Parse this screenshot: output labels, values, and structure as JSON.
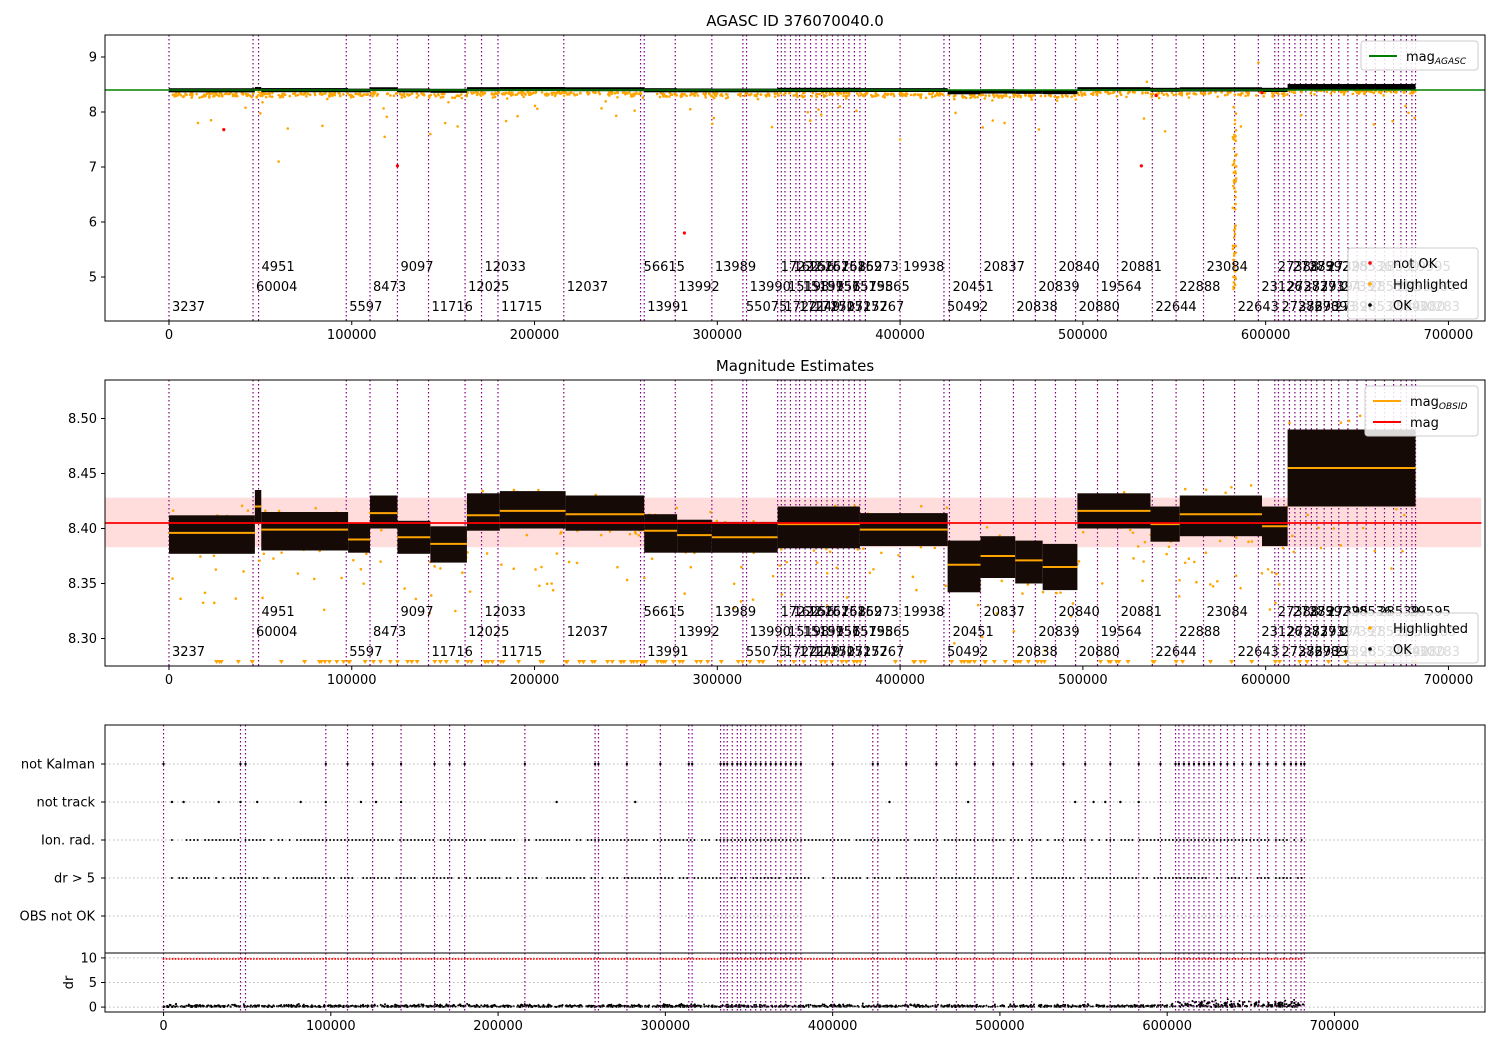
{
  "chart_data": [
    {
      "type": "scatter",
      "title": "AGASC ID 376070040.0",
      "xlim": [
        -35000,
        720000
      ],
      "ylim": [
        4.2,
        9.4
      ],
      "x_ticks": [
        0,
        100000,
        200000,
        300000,
        400000,
        500000,
        600000,
        700000
      ],
      "x_tick_labels": [
        "0",
        "100000",
        "200000",
        "300000",
        "400000",
        "500000",
        "600000",
        "700000"
      ],
      "y_ticks": [
        5,
        6,
        7,
        8,
        9
      ],
      "y_tick_labels": [
        "5",
        "6",
        "7",
        "8",
        "9"
      ],
      "reference_line": {
        "name": "mag_AGASC",
        "y": 8.4,
        "color": "#008000"
      },
      "legend_top": {
        "position": "top-right",
        "entries": [
          {
            "label": "mag",
            "subscript": "AGASC",
            "color": "#008000",
            "marker": "line"
          }
        ]
      },
      "legend_bottom": {
        "position": "lower-right",
        "entries": [
          {
            "label": "not OK",
            "color": "#ff0000",
            "marker": "dot"
          },
          {
            "label": "Highlighted",
            "color": "#ffa500",
            "marker": "dot"
          },
          {
            "label": "OK",
            "color": "#000000",
            "marker": "dot"
          }
        ]
      },
      "not_ok_points": [
        [
          30000,
          7.68
        ],
        [
          125000,
          7.02
        ],
        [
          282000,
          5.8
        ],
        [
          532000,
          7.02
        ],
        [
          540000,
          8.3
        ],
        [
          598000,
          8.35
        ]
      ],
      "grid": false
    },
    {
      "type": "scatter",
      "title": "Magnitude Estimates",
      "xlim": [
        -35000,
        720000
      ],
      "ylim": [
        8.275,
        8.535
      ],
      "x_ticks": [
        0,
        100000,
        200000,
        300000,
        400000,
        500000,
        600000,
        700000
      ],
      "x_tick_labels": [
        "0",
        "100000",
        "200000",
        "300000",
        "400000",
        "500000",
        "600000",
        "700000"
      ],
      "y_ticks": [
        8.3,
        8.35,
        8.4,
        8.45,
        8.5
      ],
      "y_tick_labels": [
        "8.30",
        "8.35",
        "8.40",
        "8.45",
        "8.50"
      ],
      "mean_mag": {
        "name": "mag",
        "y": 8.405,
        "band": [
          8.383,
          8.428
        ],
        "color": "#ff0000"
      },
      "legend_top": {
        "position": "top-right",
        "entries": [
          {
            "label": "mag",
            "subscript": "OBSID",
            "color": "#ffa500",
            "marker": "line"
          },
          {
            "label": "mag",
            "subscript": "",
            "color": "#ff0000",
            "marker": "line"
          }
        ]
      },
      "legend_bottom": {
        "position": "lower-right",
        "entries": [
          {
            "label": "Highlighted",
            "color": "#ffa500",
            "marker": "dot"
          },
          {
            "label": "OK",
            "color": "#000000",
            "marker": "dot"
          }
        ]
      },
      "obsid_segments": [
        {
          "x0": 0,
          "x1": 47000,
          "mag": 8.396,
          "lo": 8.377,
          "hi": 8.412
        },
        {
          "x0": 47000,
          "x1": 50500,
          "mag": 8.42,
          "lo": 8.405,
          "hi": 8.435
        },
        {
          "x0": 50500,
          "x1": 98000,
          "mag": 8.399,
          "lo": 8.38,
          "hi": 8.415
        },
        {
          "x0": 98000,
          "x1": 110000,
          "mag": 8.39,
          "lo": 8.378,
          "hi": 8.405
        },
        {
          "x0": 110000,
          "x1": 125000,
          "mag": 8.414,
          "lo": 8.4,
          "hi": 8.43
        },
        {
          "x0": 125000,
          "x1": 143000,
          "mag": 8.392,
          "lo": 8.377,
          "hi": 8.407
        },
        {
          "x0": 143000,
          "x1": 163000,
          "mag": 8.386,
          "lo": 8.369,
          "hi": 8.402
        },
        {
          "x0": 163000,
          "x1": 181000,
          "mag": 8.412,
          "lo": 8.398,
          "hi": 8.432
        },
        {
          "x0": 181000,
          "x1": 217000,
          "mag": 8.416,
          "lo": 8.4,
          "hi": 8.434
        },
        {
          "x0": 217000,
          "x1": 260000,
          "mag": 8.413,
          "lo": 8.398,
          "hi": 8.43
        },
        {
          "x0": 260000,
          "x1": 278000,
          "mag": 8.398,
          "lo": 8.378,
          "hi": 8.413
        },
        {
          "x0": 278000,
          "x1": 297000,
          "mag": 8.394,
          "lo": 8.378,
          "hi": 8.408
        },
        {
          "x0": 297000,
          "x1": 333000,
          "mag": 8.392,
          "lo": 8.378,
          "hi": 8.406
        },
        {
          "x0": 333000,
          "x1": 378000,
          "mag": 8.404,
          "lo": 8.382,
          "hi": 8.42
        },
        {
          "x0": 378000,
          "x1": 426000,
          "mag": 8.399,
          "lo": 8.384,
          "hi": 8.414
        },
        {
          "x0": 426000,
          "x1": 444000,
          "mag": 8.367,
          "lo": 8.342,
          "hi": 8.389
        },
        {
          "x0": 444000,
          "x1": 463000,
          "mag": 8.375,
          "lo": 8.355,
          "hi": 8.393
        },
        {
          "x0": 463000,
          "x1": 478000,
          "mag": 8.371,
          "lo": 8.35,
          "hi": 8.389
        },
        {
          "x0": 478000,
          "x1": 497000,
          "mag": 8.365,
          "lo": 8.344,
          "hi": 8.386
        },
        {
          "x0": 497000,
          "x1": 537000,
          "mag": 8.416,
          "lo": 8.4,
          "hi": 8.432
        },
        {
          "x0": 537000,
          "x1": 553000,
          "mag": 8.404,
          "lo": 8.388,
          "hi": 8.42
        },
        {
          "x0": 553000,
          "x1": 598000,
          "mag": 8.413,
          "lo": 8.393,
          "hi": 8.43
        },
        {
          "x0": 598000,
          "x1": 612000,
          "mag": 8.402,
          "lo": 8.384,
          "hi": 8.42
        },
        {
          "x0": 612000,
          "x1": 682000,
          "mag": 8.455,
          "lo": 8.42,
          "hi": 8.49
        }
      ],
      "grid": false
    },
    {
      "type": "scatter",
      "title": "",
      "xlim": [
        -35000,
        790000
      ],
      "flag_rows": [
        "not Kalman",
        "not track",
        "Ion. rad.",
        "dr > 5",
        "OBS not OK"
      ],
      "dr_panel": {
        "ylabel": "dr",
        "y_ticks": [
          0,
          5,
          10
        ],
        "y_tick_labels": [
          "0",
          "5",
          "10"
        ],
        "ylim": [
          -1,
          11
        ]
      },
      "x_ticks": [
        0,
        100000,
        200000,
        300000,
        400000,
        500000,
        600000,
        700000
      ],
      "x_tick_labels": [
        "0",
        "100000",
        "200000",
        "300000",
        "400000",
        "500000",
        "600000",
        "700000"
      ],
      "grid": "horizontal dotted"
    }
  ],
  "obsid_markers": [
    {
      "x": 0,
      "label": "3237",
      "row": 3
    },
    {
      "x": 46000,
      "label": "60004",
      "row": 2
    },
    {
      "x": 49000,
      "label": "4951",
      "row": 1
    },
    {
      "x": 97000,
      "label": "5597",
      "row": 3
    },
    {
      "x": 110000,
      "label": "8473",
      "row": 2
    },
    {
      "x": 125000,
      "label": "9097",
      "row": 1
    },
    {
      "x": 142000,
      "label": "11716",
      "row": 3
    },
    {
      "x": 162000,
      "label": "12025",
      "row": 2
    },
    {
      "x": 171000,
      "label": "12033",
      "row": 1
    },
    {
      "x": 180000,
      "label": "11715",
      "row": 3
    },
    {
      "x": 216000,
      "label": "12037",
      "row": 2
    },
    {
      "x": 258000,
      "label": "56615",
      "row": 1
    },
    {
      "x": 260000,
      "label": "13991",
      "row": 3
    },
    {
      "x": 277000,
      "label": "13992",
      "row": 2
    },
    {
      "x": 297000,
      "label": "13989",
      "row": 1
    },
    {
      "x": 314000,
      "label": "55075",
      "row": 3
    },
    {
      "x": 316000,
      "label": "13990",
      "row": 2
    },
    {
      "x": 333000,
      "label": "17222",
      "row": 1
    },
    {
      "x": 335000,
      "label": "17221",
      "row": 3
    },
    {
      "x": 337000,
      "label": "15198",
      "row": 2
    },
    {
      "x": 340000,
      "label": "16256",
      "row": 1
    },
    {
      "x": 343000,
      "label": "17249",
      "row": 3
    },
    {
      "x": 345000,
      "label": "15199",
      "row": 2
    },
    {
      "x": 348000,
      "label": "16257",
      "row": 1
    },
    {
      "x": 351000,
      "label": "17250",
      "row": 3
    },
    {
      "x": 354000,
      "label": "15756",
      "row": 2
    },
    {
      "x": 357000,
      "label": "16258",
      "row": 1
    },
    {
      "x": 360000,
      "label": "17251",
      "row": 3
    },
    {
      "x": 363000,
      "label": "15757",
      "row": 2
    },
    {
      "x": 366000,
      "label": "16259",
      "row": 1
    },
    {
      "x": 369000,
      "label": "17252",
      "row": 3
    },
    {
      "x": 372000,
      "label": "15758",
      "row": 2
    },
    {
      "x": 375000,
      "label": "16273",
      "row": 1
    },
    {
      "x": 378000,
      "label": "17767",
      "row": 3
    },
    {
      "x": 381000,
      "label": "19565",
      "row": 2
    },
    {
      "x": 400000,
      "label": "19938",
      "row": 1
    },
    {
      "x": 424000,
      "label": "50492",
      "row": 3
    },
    {
      "x": 427000,
      "label": "20451",
      "row": 2
    },
    {
      "x": 444000,
      "label": "20837",
      "row": 1
    },
    {
      "x": 462000,
      "label": "20838",
      "row": 3
    },
    {
      "x": 474000,
      "label": "20839",
      "row": 2
    },
    {
      "x": 485000,
      "label": "20840",
      "row": 1
    },
    {
      "x": 496000,
      "label": "20880",
      "row": 3
    },
    {
      "x": 508000,
      "label": "19564",
      "row": 2
    },
    {
      "x": 519000,
      "label": "20881",
      "row": 1
    },
    {
      "x": 538000,
      "label": "22644",
      "row": 3
    },
    {
      "x": 551000,
      "label": "22888",
      "row": 2
    },
    {
      "x": 566000,
      "label": "23084",
      "row": 1
    },
    {
      "x": 583000,
      "label": "22643",
      "row": 3
    },
    {
      "x": 596000,
      "label": "23126",
      "row": 2
    },
    {
      "x": 605000,
      "label": "27388",
      "row": 1
    },
    {
      "x": 607000,
      "label": "27386",
      "row": 3
    },
    {
      "x": 610000,
      "label": "27387",
      "row": 2
    },
    {
      "x": 613000,
      "label": "27389",
      "row": 1
    },
    {
      "x": 616000,
      "label": "27390",
      "row": 3
    },
    {
      "x": 619000,
      "label": "27391",
      "row": 2
    },
    {
      "x": 622000,
      "label": "27392",
      "row": 1
    },
    {
      "x": 625000,
      "label": "27393",
      "row": 3
    },
    {
      "x": 628000,
      "label": "27394",
      "row": 2
    },
    {
      "x": 632000,
      "label": "27395",
      "row": 1
    },
    {
      "x": 636000,
      "label": "27396",
      "row": 3
    },
    {
      "x": 640000,
      "label": "27397",
      "row": 2
    },
    {
      "x": 645000,
      "label": "28536",
      "row": 1
    },
    {
      "x": 650000,
      "label": "28537",
      "row": 3
    },
    {
      "x": 655000,
      "label": "28538",
      "row": 2
    },
    {
      "x": 660000,
      "label": "28539",
      "row": 1
    },
    {
      "x": 665000,
      "label": "28540",
      "row": 3
    },
    {
      "x": 670000,
      "label": "28578",
      "row": 2
    },
    {
      "x": 674000,
      "label": "29280",
      "row": 3
    },
    {
      "x": 677000,
      "label": "29595",
      "row": 1
    },
    {
      "x": 680000,
      "label": "30280",
      "row": 2
    },
    {
      "x": 682000,
      "label": "30283",
      "row": 3
    }
  ],
  "colors": {
    "ok": "#000000",
    "highlighted": "#ffa500",
    "not_ok": "#ff0000",
    "obsid_line": "#800080",
    "agasc_line": "#008000",
    "mean_line": "#ff0000",
    "mean_band": "#ffdddd"
  }
}
